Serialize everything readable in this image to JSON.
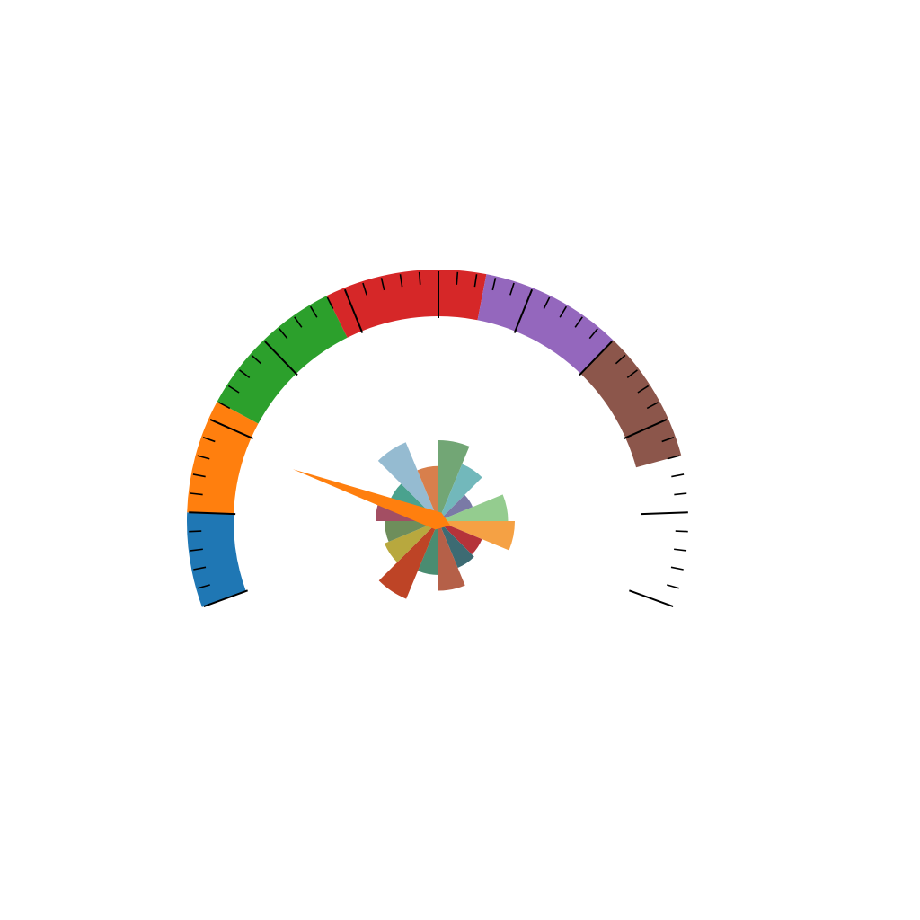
{
  "chart_data": [
    {
      "type": "gauge",
      "title": "",
      "range": [
        0,
        100
      ],
      "bands": [
        {
          "from": 0,
          "to": 10,
          "color": "#1f77b4"
        },
        {
          "from": 10,
          "to": 22,
          "color": "#ff7f0e"
        },
        {
          "from": 22,
          "to": 38,
          "color": "#2ca02c"
        },
        {
          "from": 38,
          "to": 55,
          "color": "#d62728"
        },
        {
          "from": 55,
          "to": 70,
          "color": "#9467bd"
        },
        {
          "from": 70,
          "to": 84,
          "color": "#8c564b"
        }
      ],
      "minor_ticks_per_major": 4,
      "major_tick_count": 11,
      "tick_labels_visible": false,
      "needle": {
        "value": 18,
        "color": "#ff7f0e"
      }
    },
    {
      "type": "polar_bar",
      "title": "",
      "bar_count": 16,
      "r_max": 1.0,
      "values": [
        0.72,
        0.55,
        0.33,
        0.62,
        0.68,
        0.42,
        0.45,
        0.62,
        0.48,
        0.75,
        0.52,
        0.48,
        0.56,
        0.47,
        0.76,
        0.49
      ],
      "colors": [
        "#72a675",
        "#72b8bb",
        "#7a7aa6",
        "#94cc8f",
        "#f5a144",
        "#b5333a",
        "#3d6b73",
        "#b56048",
        "#4a8c71",
        "#be4426",
        "#b8a83e",
        "#6e8e5b",
        "#a34e63",
        "#4aa28e",
        "#95bbd1",
        "#d87f4c"
      ]
    }
  ]
}
